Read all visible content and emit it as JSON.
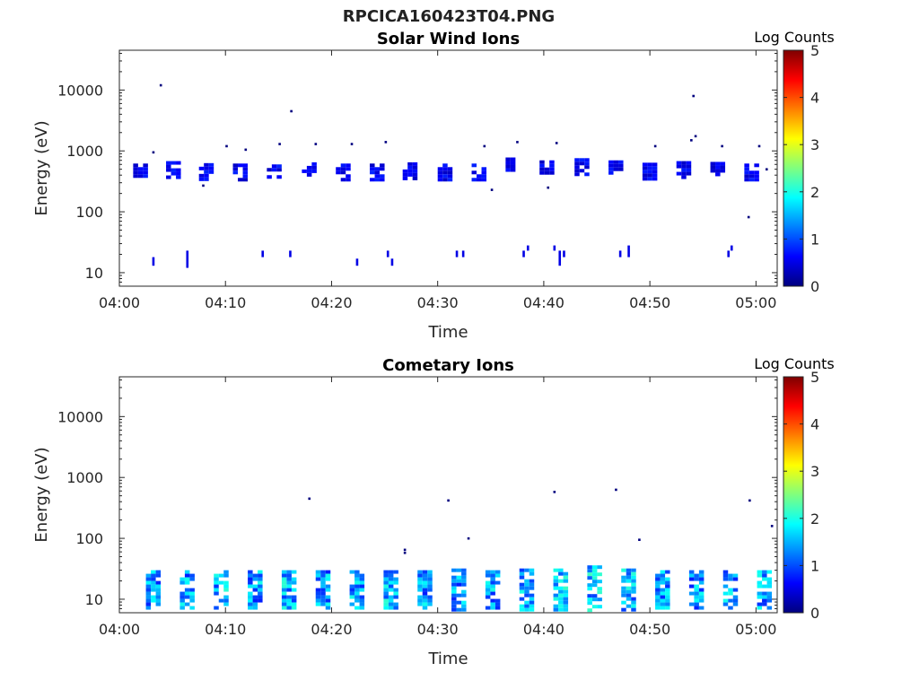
{
  "figure": {
    "title": "RPCICA160423T04.PNG"
  },
  "colors": {
    "cmap": [
      "#00007f",
      "#0000ff",
      "#007fff",
      "#00ffff",
      "#7fff7f",
      "#ffff00",
      "#ff7f00",
      "#ff0000",
      "#7f0000"
    ],
    "axis": "#262626",
    "grid_tick": "#262626"
  },
  "chart_data": [
    {
      "type": "heatmap",
      "title": "Solar Wind Ions",
      "xlabel": "Time",
      "ylabel": "Energy (eV)",
      "yscale": "log",
      "ylim": [
        6,
        45000
      ],
      "xlim_minutes": [
        0,
        62
      ],
      "xticks": [
        {
          "label": "04:00",
          "minute": 0
        },
        {
          "label": "04:10",
          "minute": 10
        },
        {
          "label": "04:20",
          "minute": 20
        },
        {
          "label": "04:30",
          "minute": 30
        },
        {
          "label": "04:40",
          "minute": 40
        },
        {
          "label": "04:50",
          "minute": 50
        },
        {
          "label": "05:00",
          "minute": 60
        }
      ],
      "yticks": [
        {
          "label": "10",
          "value": 10
        },
        {
          "label": "100",
          "value": 100
        },
        {
          "label": "1000",
          "value": 1000
        },
        {
          "label": "10000",
          "value": 10000
        }
      ],
      "colorbar": {
        "label": "Log Counts",
        "min": 0,
        "max": 5,
        "ticks": [
          "0",
          "1",
          "2",
          "3",
          "4",
          "5"
        ]
      },
      "clusters": [
        {
          "minute": 2.0,
          "energy_min": 380,
          "energy_max": 620,
          "level": 0.5
        },
        {
          "minute": 5.1,
          "energy_min": 380,
          "energy_max": 680,
          "level": 0.5
        },
        {
          "minute": 8.2,
          "energy_min": 350,
          "energy_max": 630,
          "level": 0.5
        },
        {
          "minute": 11.4,
          "energy_min": 330,
          "energy_max": 620,
          "level": 0.5
        },
        {
          "minute": 14.6,
          "energy_min": 380,
          "energy_max": 600,
          "level": 0.5
        },
        {
          "minute": 17.9,
          "energy_min": 380,
          "energy_max": 650,
          "level": 0.5
        },
        {
          "minute": 21.1,
          "energy_min": 360,
          "energy_max": 620,
          "level": 0.5
        },
        {
          "minute": 24.3,
          "energy_min": 360,
          "energy_max": 620,
          "level": 0.5
        },
        {
          "minute": 27.4,
          "energy_min": 360,
          "energy_max": 650,
          "level": 0.5
        },
        {
          "minute": 30.7,
          "energy_min": 340,
          "energy_max": 620,
          "level": 0.5
        },
        {
          "minute": 33.9,
          "energy_min": 360,
          "energy_max": 620,
          "level": 0.5
        },
        {
          "minute": 37.1,
          "energy_min": 460,
          "energy_max": 780,
          "level": 0.5
        },
        {
          "minute": 40.3,
          "energy_min": 460,
          "energy_max": 700,
          "level": 0.5
        },
        {
          "minute": 43.6,
          "energy_min": 420,
          "energy_max": 760,
          "level": 0.5
        },
        {
          "minute": 46.8,
          "energy_min": 430,
          "energy_max": 700,
          "level": 0.5
        },
        {
          "minute": 50.0,
          "energy_min": 360,
          "energy_max": 640,
          "level": 0.5
        },
        {
          "minute": 53.2,
          "energy_min": 380,
          "energy_max": 680,
          "level": 0.5
        },
        {
          "minute": 56.4,
          "energy_min": 400,
          "energy_max": 660,
          "level": 0.5
        },
        {
          "minute": 59.6,
          "energy_min": 330,
          "energy_max": 620,
          "level": 0.5
        }
      ],
      "bars": [
        {
          "minute": 3.2,
          "energy_min": 13,
          "energy_max": 18,
          "level": 0.5
        },
        {
          "minute": 6.4,
          "energy_min": 12,
          "energy_max": 23,
          "level": 0.5
        },
        {
          "minute": 13.5,
          "energy_min": 18,
          "energy_max": 23,
          "level": 0.5
        },
        {
          "minute": 16.1,
          "energy_min": 18,
          "energy_max": 23,
          "level": 0.5
        },
        {
          "minute": 22.4,
          "energy_min": 13,
          "energy_max": 17,
          "level": 0.5
        },
        {
          "minute": 25.3,
          "energy_min": 18,
          "energy_max": 23,
          "level": 0.5
        },
        {
          "minute": 25.7,
          "energy_min": 13,
          "energy_max": 17,
          "level": 0.5
        },
        {
          "minute": 31.8,
          "energy_min": 18,
          "energy_max": 23,
          "level": 0.5
        },
        {
          "minute": 32.4,
          "energy_min": 18,
          "energy_max": 23,
          "level": 0.5
        },
        {
          "minute": 38.1,
          "energy_min": 18,
          "energy_max": 23,
          "level": 0.5
        },
        {
          "minute": 38.5,
          "energy_min": 23,
          "energy_max": 28,
          "level": 0.5
        },
        {
          "minute": 41.0,
          "energy_min": 23,
          "energy_max": 28,
          "level": 0.5
        },
        {
          "minute": 41.5,
          "energy_min": 13,
          "energy_max": 23,
          "level": 0.5
        },
        {
          "minute": 41.9,
          "energy_min": 18,
          "energy_max": 23,
          "level": 0.5
        },
        {
          "minute": 47.2,
          "energy_min": 18,
          "energy_max": 23,
          "level": 0.5
        },
        {
          "minute": 48.0,
          "energy_min": 18,
          "energy_max": 28,
          "level": 0.5
        },
        {
          "minute": 57.4,
          "energy_min": 18,
          "energy_max": 23,
          "level": 0.5
        },
        {
          "minute": 57.7,
          "energy_min": 23,
          "energy_max": 28,
          "level": 0.5
        }
      ],
      "points": [
        {
          "minute": 3.9,
          "energy": 12000
        },
        {
          "minute": 3.2,
          "energy": 950
        },
        {
          "minute": 7.9,
          "energy": 270
        },
        {
          "minute": 10.1,
          "energy": 1200
        },
        {
          "minute": 11.9,
          "energy": 1050
        },
        {
          "minute": 15.1,
          "energy": 1300
        },
        {
          "minute": 16.2,
          "energy": 4500
        },
        {
          "minute": 18.5,
          "energy": 1300
        },
        {
          "minute": 21.9,
          "energy": 1300
        },
        {
          "minute": 25.1,
          "energy": 1400
        },
        {
          "minute": 34.4,
          "energy": 1200
        },
        {
          "minute": 35.1,
          "energy": 230
        },
        {
          "minute": 37.5,
          "energy": 1400
        },
        {
          "minute": 41.2,
          "energy": 1350
        },
        {
          "minute": 40.4,
          "energy": 250
        },
        {
          "minute": 50.5,
          "energy": 1200
        },
        {
          "minute": 53.9,
          "energy": 1500
        },
        {
          "minute": 54.3,
          "energy": 1750
        },
        {
          "minute": 54.1,
          "energy": 8000
        },
        {
          "minute": 56.8,
          "energy": 1200
        },
        {
          "minute": 59.3,
          "energy": 82
        },
        {
          "minute": 60.3,
          "energy": 1200
        },
        {
          "minute": 61.0,
          "energy": 500
        }
      ]
    },
    {
      "type": "heatmap",
      "title": "Cometary Ions",
      "xlabel": "Time",
      "ylabel": "Energy (eV)",
      "yscale": "log",
      "ylim": [
        6,
        45000
      ],
      "xlim_minutes": [
        0,
        62
      ],
      "xticks": [
        {
          "label": "04:00",
          "minute": 0
        },
        {
          "label": "04:10",
          "minute": 10
        },
        {
          "label": "04:20",
          "minute": 20
        },
        {
          "label": "04:30",
          "minute": 30
        },
        {
          "label": "04:40",
          "minute": 40
        },
        {
          "label": "04:50",
          "minute": 50
        },
        {
          "label": "05:00",
          "minute": 60
        }
      ],
      "yticks": [
        {
          "label": "10",
          "value": 10
        },
        {
          "label": "100",
          "value": 100
        },
        {
          "label": "1000",
          "value": 1000
        },
        {
          "label": "10000",
          "value": 10000
        }
      ],
      "colorbar": {
        "label": "Log Counts",
        "min": 0,
        "max": 5,
        "ticks": [
          "0",
          "1",
          "2",
          "3",
          "4",
          "5"
        ]
      },
      "clusters": [
        {
          "minute": 3.2,
          "energy_min": 7,
          "energy_max": 30,
          "level": 1.2
        },
        {
          "minute": 6.4,
          "energy_min": 7,
          "energy_max": 30,
          "level": 1.2
        },
        {
          "minute": 9.6,
          "energy_min": 7,
          "energy_max": 30,
          "level": 1.3
        },
        {
          "minute": 12.8,
          "energy_min": 7,
          "energy_max": 30,
          "level": 1.2
        },
        {
          "minute": 16.0,
          "energy_min": 7,
          "energy_max": 30,
          "level": 1.3
        },
        {
          "minute": 19.2,
          "energy_min": 7,
          "energy_max": 30,
          "level": 1.2
        },
        {
          "minute": 22.4,
          "energy_min": 7,
          "energy_max": 30,
          "level": 1.2
        },
        {
          "minute": 25.6,
          "energy_min": 7,
          "energy_max": 30,
          "level": 1.3
        },
        {
          "minute": 28.8,
          "energy_min": 7,
          "energy_max": 30,
          "level": 1.2
        },
        {
          "minute": 32.0,
          "energy_min": 7,
          "energy_max": 32,
          "level": 1.2
        },
        {
          "minute": 35.2,
          "energy_min": 7,
          "energy_max": 30,
          "level": 1.2
        },
        {
          "minute": 38.4,
          "energy_min": 7,
          "energy_max": 32,
          "level": 1.3
        },
        {
          "minute": 41.6,
          "energy_min": 7,
          "energy_max": 32,
          "level": 1.4
        },
        {
          "minute": 44.8,
          "energy_min": 7,
          "energy_max": 36,
          "level": 1.4
        },
        {
          "minute": 48.0,
          "energy_min": 7,
          "energy_max": 32,
          "level": 1.3
        },
        {
          "minute": 51.2,
          "energy_min": 7,
          "energy_max": 30,
          "level": 1.2
        },
        {
          "minute": 54.4,
          "energy_min": 7,
          "energy_max": 30,
          "level": 1.2
        },
        {
          "minute": 57.6,
          "energy_min": 7,
          "energy_max": 30,
          "level": 1.2
        },
        {
          "minute": 60.8,
          "energy_min": 7,
          "energy_max": 30,
          "level": 1.2
        }
      ],
      "bars": [],
      "points": [
        {
          "minute": 17.9,
          "energy": 450
        },
        {
          "minute": 26.9,
          "energy": 65
        },
        {
          "minute": 26.9,
          "energy": 58
        },
        {
          "minute": 31.0,
          "energy": 420
        },
        {
          "minute": 32.9,
          "energy": 100
        },
        {
          "minute": 41.0,
          "energy": 580
        },
        {
          "minute": 46.8,
          "energy": 630
        },
        {
          "minute": 49.0,
          "energy": 95
        },
        {
          "minute": 59.4,
          "energy": 420
        },
        {
          "minute": 61.5,
          "energy": 160
        }
      ]
    }
  ]
}
